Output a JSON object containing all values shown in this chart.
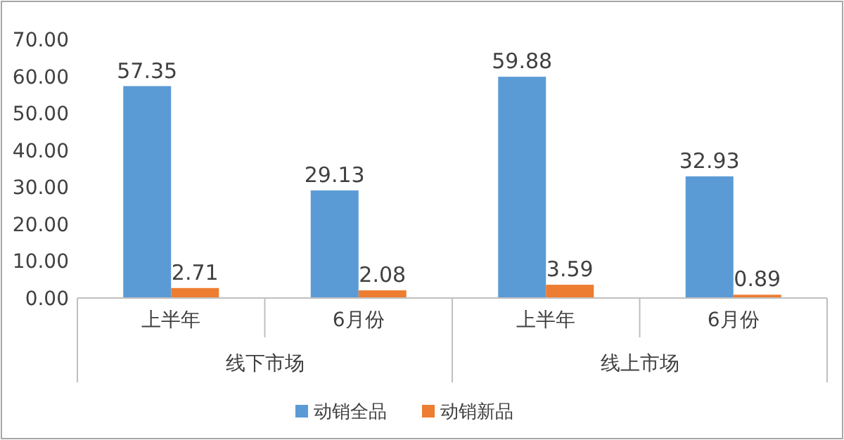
{
  "chart_data": {
    "type": "bar",
    "categories": [
      "上半年",
      "6月份",
      "上半年",
      "6月份"
    ],
    "annotations": [
      "线下市场",
      "线上市场"
    ],
    "series": [
      {
        "name": "动销全品",
        "color": "#5b9bd5",
        "values": [
          57.35,
          29.13,
          59.88,
          32.93
        ]
      },
      {
        "name": "动销新品",
        "color": "#ed7d31",
        "values": [
          2.71,
          2.08,
          3.59,
          0.89
        ]
      }
    ],
    "ylim": [
      0,
      70
    ],
    "yticks": [
      {
        "value": 0,
        "label": "0.00"
      },
      {
        "value": 10,
        "label": "10.00"
      },
      {
        "value": 20,
        "label": "20.00"
      },
      {
        "value": 30,
        "label": "30.00"
      },
      {
        "value": 40,
        "label": "40.00"
      },
      {
        "value": 50,
        "label": "50.00"
      },
      {
        "value": 60,
        "label": "60.00"
      },
      {
        "value": 70,
        "label": "70.00"
      }
    ],
    "data_labels": true,
    "legend": "bottom"
  }
}
